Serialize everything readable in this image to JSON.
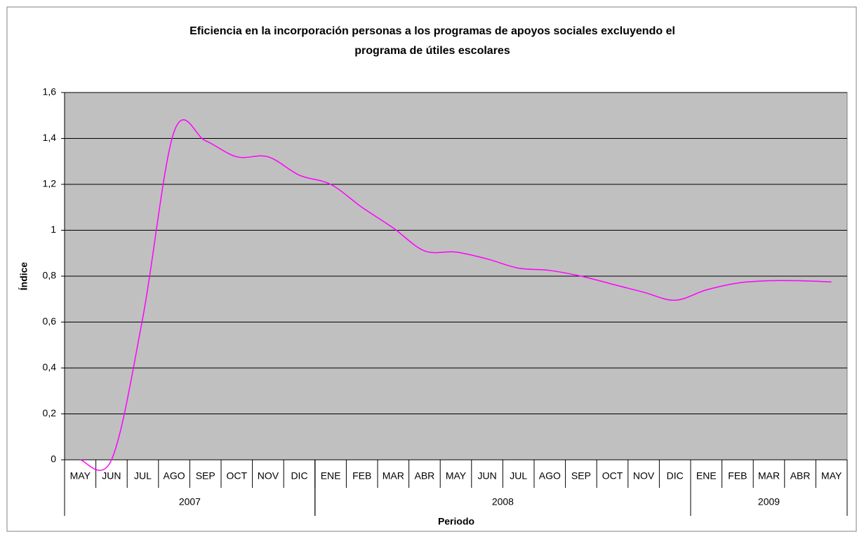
{
  "chart_data": {
    "type": "line",
    "title": [
      "Eficiencia en la incorporación personas a los programas de apoyos sociales excluyendo el",
      "programa de útiles escolares"
    ],
    "x_label": "Periodo",
    "y_label": "Índice",
    "categories": [
      "MAY",
      "JUN",
      "JUL",
      "AGO",
      "SEP",
      "OCT",
      "NOV",
      "DIC",
      "ENE",
      "FEB",
      "MAR",
      "ABR",
      "MAY",
      "JUN",
      "JUL",
      "AGO",
      "SEP",
      "OCT",
      "NOV",
      "DIC",
      "ENE",
      "FEB",
      "MAR",
      "ABR",
      "MAY"
    ],
    "groups": [
      {
        "label": "2007",
        "count": 8
      },
      {
        "label": "2008",
        "count": 12
      },
      {
        "label": "2009",
        "count": 5
      }
    ],
    "series": [
      {
        "name": "Índice",
        "color": "#ff00ff",
        "values": [
          0,
          0,
          0.62,
          1.43,
          1.39,
          1.32,
          1.32,
          1.24,
          1.2,
          1.1,
          1.01,
          0.91,
          0.905,
          0.875,
          0.835,
          0.825,
          0.8,
          0.765,
          0.73,
          0.695,
          0.74,
          0.77,
          0.78,
          0.78,
          0.775
        ]
      }
    ],
    "ylim": [
      0,
      1.6
    ],
    "yticks": [
      0,
      {
        "value": 0.2,
        "label": "0,2"
      },
      {
        "value": 0.4,
        "label": "0,4"
      },
      {
        "value": 0.6,
        "label": "0,6"
      },
      {
        "value": 0.8,
        "label": "0,8"
      },
      1,
      {
        "value": 1.2,
        "label": "1,2"
      },
      {
        "value": 1.4,
        "label": "1,4"
      },
      {
        "value": 1.6,
        "label": "1,6"
      }
    ],
    "grid": true,
    "plot_background": "#c0c0c0"
  }
}
